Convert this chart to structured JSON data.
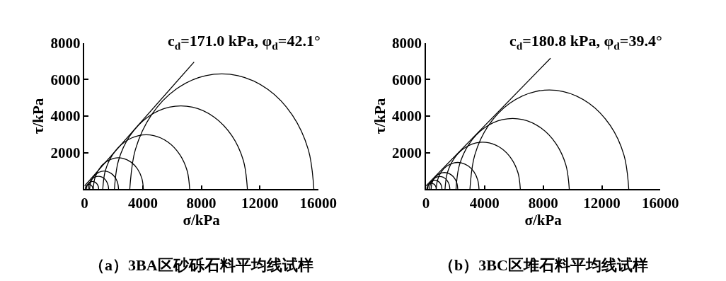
{
  "chart_data": [
    {
      "type": "line",
      "title": "（a）3BA区砂砾石料平均线试样",
      "xlabel": "σ/kPa",
      "ylabel": "τ/kPa",
      "xlim": [
        0,
        16000
      ],
      "xticks": [
        0,
        4000,
        8000,
        12000,
        16000
      ],
      "ylim": [
        0,
        8000
      ],
      "yticks": [
        2000,
        4000,
        6000,
        8000
      ],
      "marker": "none",
      "line_style": "solid",
      "annotations": [
        "c$_{d}$=171.0 kPa, φ$_{d}$=42.1°"
      ],
      "series": [
        {
          "color": "#000000",
          "x": [
            15700,
            15322,
            14226,
            12550,
            10496,
            8304,
            6250,
            4574,
            3478,
            3100
          ],
          "values": [
            0,
            2155,
            4051,
            5456,
            6206,
            6206,
            5456,
            4051,
            2155,
            0
          ]
        },
        {
          "color": "#000000",
          "x": [
            11150,
            10877,
            10085,
            8875,
            7392,
            5808,
            4325,
            3115,
            2323,
            2050
          ],
          "values": [
            0,
            1556,
            2926,
            3940,
            4482,
            4482,
            3940,
            2926,
            1556,
            0
          ]
        },
        {
          "color": "#000000",
          "x": [
            7200,
            7022,
            6504,
            5713,
            4743,
            3707,
            2737,
            1946,
            1428,
            1250
          ],
          "values": [
            0,
            1017,
            1913,
            2576,
            2930,
            2930,
            2576,
            1913,
            1017,
            0
          ]
        },
        {
          "color": "#000000",
          "x": [
            4030,
            3927,
            3629,
            3173,
            2613,
            2017,
            1457,
            1001,
            703,
            600
          ],
          "values": [
            0,
            587,
            1103,
            1485,
            1689,
            1689,
            1485,
            1103,
            587,
            0
          ]
        },
        {
          "color": "#000000",
          "x": [
            2330,
            2271,
            2098,
            1835,
            1512,
            1168,
            845,
            582,
            409,
            350
          ],
          "values": [
            0,
            339,
            637,
            857,
            975,
            975,
            857,
            637,
            339,
            0
          ]
        },
        {
          "color": "#000000",
          "x": [
            1650,
            1608,
            1486,
            1300,
            1072,
            828,
            600,
            414,
            292,
            250
          ],
          "values": [
            0,
            239,
            450,
            606,
            690,
            690,
            606,
            450,
            239,
            0
          ]
        },
        {
          "color": "#000000",
          "x": [
            970,
            945,
            872,
            760,
            623,
            477,
            340,
            228,
            155,
            130
          ],
          "values": [
            0,
            144,
            270,
            364,
            414,
            414,
            364,
            270,
            144,
            0
          ]
        },
        {
          "color": "#000000",
          "x": [
            570,
            554,
            509,
            440,
            355,
            265,
            180,
            111,
            66,
            50
          ],
          "values": [
            0,
            89,
            167,
            225,
            256,
            256,
            225,
            167,
            89,
            0
          ]
        },
        {
          "color": "#000000",
          "x": [
            0,
            7500
          ],
          "values": [
            171,
            6951
          ]
        }
      ]
    },
    {
      "type": "line",
      "title": "（b）3BC区堆石料平均线试样",
      "xlabel": "σ/kPa",
      "ylabel": "τ/kPa",
      "xlim": [
        0,
        16000
      ],
      "xticks": [
        0,
        4000,
        8000,
        12000,
        16000
      ],
      "ylim": [
        0,
        8000
      ],
      "yticks": [
        2000,
        4000,
        6000,
        8000
      ],
      "marker": "none",
      "line_style": "solid",
      "annotations": [
        "c$_{d}$=180.8 kPa, φ$_{d}$=39.4°"
      ],
      "series": [
        {
          "color": "#000000",
          "x": [
            13840,
            13515,
            12572,
            11130,
            9363,
            7477,
            5710,
            4268,
            3325,
            3000
          ],
          "values": [
            0,
            1854,
            3485,
            4694,
            5339,
            5339,
            4694,
            3485,
            1854,
            0
          ]
        },
        {
          "color": "#000000",
          "x": [
            9780,
            9548,
            8876,
            7848,
            6588,
            5242,
            3982,
            2954,
            2282,
            2050
          ],
          "values": [
            0,
            1322,
            2485,
            3347,
            3807,
            3807,
            3347,
            2485,
            1322,
            0
          ]
        },
        {
          "color": "#000000",
          "x": [
            6440,
            6286,
            5839,
            5155,
            4317,
            3423,
            2585,
            1901,
            1454,
            1300
          ],
          "values": [
            0,
            879,
            1653,
            2226,
            2531,
            2531,
            2226,
            1653,
            879,
            0
          ]
        },
        {
          "color": "#000000",
          "x": [
            3620,
            3532,
            3278,
            2890,
            2414,
            1906,
            1430,
            1042,
            788,
            700
          ],
          "values": [
            0,
            499,
            939,
            1264,
            1438,
            1438,
            1264,
            939,
            499,
            0
          ]
        },
        {
          "color": "#000000",
          "x": [
            2170,
            2115,
            1957,
            1715,
            1418,
            1102,
            805,
            563,
            405,
            350
          ],
          "values": [
            0,
            311,
            585,
            788,
            896,
            896,
            788,
            585,
            311,
            0
          ]
        },
        {
          "color": "#000000",
          "x": [
            1630,
            1589,
            1469,
            1285,
            1060,
            820,
            595,
            411,
            291,
            250
          ],
          "values": [
            0,
            236,
            444,
            598,
            680,
            680,
            598,
            444,
            236,
            0
          ]
        },
        {
          "color": "#000000",
          "x": [
            1090,
            1061,
            977,
            848,
            689,
            521,
            362,
            233,
            149,
            120
          ],
          "values": [
            0,
            166,
            312,
            420,
            478,
            478,
            420,
            312,
            166,
            0
          ]
        },
        {
          "color": "#000000",
          "x": [
            700,
            681,
            625,
            540,
            436,
            324,
            220,
            135,
            79,
            60
          ],
          "values": [
            0,
            109,
            206,
            277,
            315,
            315,
            277,
            206,
            109,
            0
          ]
        },
        {
          "color": "#000000",
          "x": [
            0,
            8500
          ],
          "values": [
            181,
            7160
          ]
        }
      ]
    }
  ]
}
